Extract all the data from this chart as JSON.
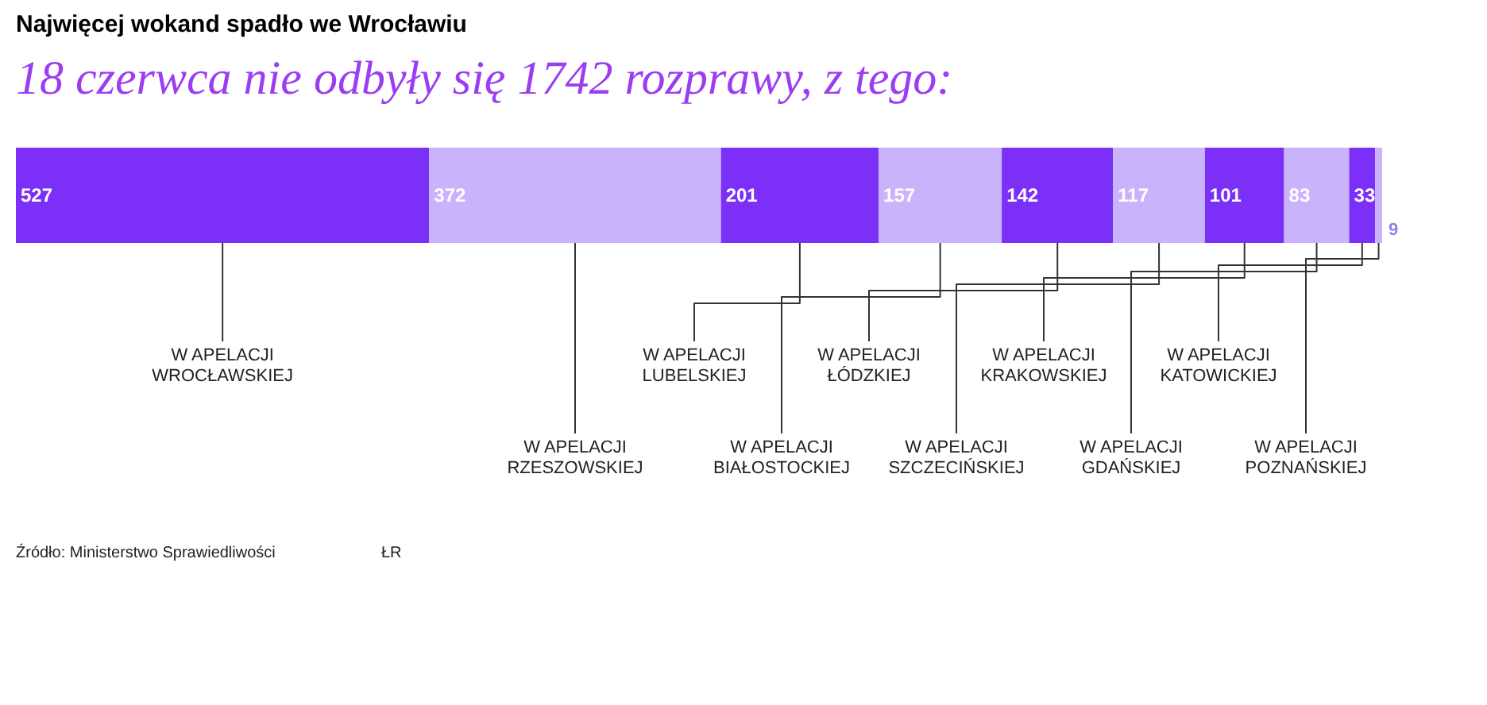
{
  "chart_data": {
    "type": "bar",
    "orientation": "horizontal",
    "stacked": true,
    "data_labels": true,
    "title": "Najwięcej wokand spadło we Wrocławiu",
    "subtitle": "18 czerwca nie odbyły się 1742 rozprawy, z tego:",
    "categories": [
      null
    ],
    "series": [
      {
        "name": "W APELACJI WROCŁAWSKIEJ",
        "color": "#7b2ff7",
        "values": [
          527
        ]
      },
      {
        "name": "W APELACJI RZESZOWSKIEJ",
        "color": "#c9b3fb",
        "values": [
          372
        ]
      },
      {
        "name": "W APELACJI LUBELSKIEJ",
        "color": "#7b2ff7",
        "values": [
          201
        ]
      },
      {
        "name": "W APELACJI BIAŁOSTOCKIEJ",
        "color": "#c9b3fb",
        "values": [
          157
        ]
      },
      {
        "name": "W APELACJI ŁÓDZKIEJ",
        "color": "#7b2ff7",
        "values": [
          142
        ]
      },
      {
        "name": "W APELACJI SZCZECIŃSKIEJ",
        "color": "#c9b3fb",
        "values": [
          117
        ]
      },
      {
        "name": "W APELACJI KRAKOWSKIEJ",
        "color": "#7b2ff7",
        "values": [
          101
        ]
      },
      {
        "name": "W APELACJI GDAŃSKIEJ",
        "color": "#c9b3fb",
        "values": [
          83
        ]
      },
      {
        "name": "W APELACJI KATOWICKIEJ",
        "color": "#7b2ff7",
        "values": [
          33
        ]
      },
      {
        "name": "W APELACJI POZNAŃSKIEJ",
        "color": "#c9b3fb",
        "values": [
          9
        ]
      }
    ],
    "annotations": [
      "Źródło: Ministerstwo Sprawiedliwości",
      "ŁR"
    ]
  }
}
